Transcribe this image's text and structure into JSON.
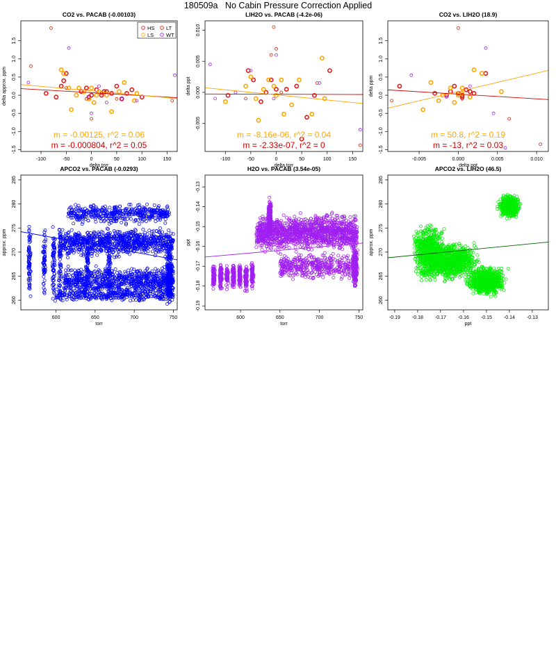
{
  "page_title": "180509a   No Cabin Pressure Correction Applied",
  "colors": {
    "HS": "#e31a1c",
    "LS": "#ffa500",
    "LT": "#cc2200",
    "WT": "#a020f0",
    "blue": "#0000ff",
    "purple": "#a020f0",
    "green": "#00ee00",
    "fit_red": "#d40000",
    "fit_orange": "#ffa500",
    "fit_green": "#006400"
  },
  "chart_data": [
    {
      "type": "scatter",
      "title": "CO2 vs. PACAB (-0.00103)",
      "xlabel": "delta torr",
      "ylabel": "delta approx. ppm",
      "xlim": [
        -140,
        170
      ],
      "ylim": [
        -1.55,
        2.05
      ],
      "xticks": [
        "-100",
        "-50",
        "0",
        "50",
        "100",
        "150"
      ],
      "xtick_values": [
        -100,
        -50,
        0,
        50,
        100,
        150
      ],
      "yticks": [
        "-1.5",
        "-1.0",
        "-0.5",
        "0.0",
        "0.5",
        "1.0",
        "1.5"
      ],
      "ytick_values": [
        -1.5,
        -1.0,
        -0.5,
        0.0,
        0.5,
        1.0,
        1.5
      ],
      "legend": {
        "position": "top-right",
        "entries": [
          "HS",
          "LT",
          "LS",
          "WT"
        ]
      },
      "series": [
        {
          "name": "HS",
          "color_key": "HS",
          "bold": true,
          "x": [
            -90,
            -60,
            -55,
            -50,
            -20,
            -10,
            -5,
            0,
            10,
            20,
            30,
            40,
            50,
            60,
            70,
            80,
            100,
            -70,
            25
          ],
          "y": [
            0.05,
            0.25,
            0.4,
            0.6,
            0.1,
            0.2,
            -0.05,
            0.0,
            0.15,
            0.0,
            0.1,
            0.05,
            0.25,
            -0.1,
            0.05,
            0.15,
            -0.05,
            -0.05,
            0.1
          ]
        },
        {
          "name": "LS",
          "color_key": "LS",
          "bold": true,
          "x": [
            -60,
            -55,
            -45,
            -40,
            -30,
            -15,
            -5,
            0,
            5,
            10,
            15,
            40,
            55,
            65,
            85,
            90,
            -25,
            30
          ],
          "y": [
            0.7,
            0.6,
            0.2,
            -0.4,
            0.0,
            0.1,
            -0.1,
            0.2,
            -0.2,
            0.0,
            0.1,
            -0.45,
            0.1,
            0.35,
            -0.15,
            0.05,
            0.2,
            0.0
          ]
        },
        {
          "name": "LT",
          "color_key": "LT",
          "bold": false,
          "x": [
            -120,
            -80,
            -50,
            -10,
            0,
            20,
            50,
            160
          ],
          "y": [
            0.8,
            1.85,
            0.2,
            -0.1,
            -0.65,
            0.05,
            -0.1,
            -0.15
          ]
        },
        {
          "name": "WT",
          "color_key": "WT",
          "bold": false,
          "x": [
            -125,
            -45,
            -5,
            0,
            15,
            30,
            60,
            90,
            165
          ],
          "y": [
            0.35,
            1.3,
            -0.05,
            -0.5,
            0.25,
            -0.2,
            -0.1,
            -0.15,
            0.55
          ]
        }
      ],
      "fits": [
        {
          "color_key": "fit_red",
          "slope": -0.000804,
          "intercept": 0.07
        },
        {
          "color_key": "fit_orange",
          "slope": -0.00125,
          "intercept": 0.12
        }
      ],
      "annotations": [
        {
          "text": "m = -0.00125, r^2 = 0.06",
          "color_key": "fit_orange"
        },
        {
          "text": "m = -0.000804, r^2 = 0.05",
          "color_key": "fit_red"
        }
      ]
    },
    {
      "type": "scatter",
      "title": "LIH2O vs. PACAB (-4.2e-06)",
      "xlabel": "delta torr",
      "ylabel": "delta ppt",
      "xlim": [
        -140,
        170
      ],
      "ylim": [
        -0.0095,
        0.0115
      ],
      "xticks": [
        "-100",
        "-50",
        "0",
        "50",
        "100",
        "150"
      ],
      "xtick_values": [
        -100,
        -50,
        0,
        50,
        100,
        150
      ],
      "yticks": [
        "-0.005",
        "0.000",
        "0.005",
        "0.010"
      ],
      "ytick_values": [
        -0.005,
        0.0,
        0.005,
        0.01
      ],
      "series": [
        {
          "name": "HS",
          "color_key": "HS",
          "bold": true,
          "x": [
            -95,
            -55,
            -45,
            -20,
            -10,
            0,
            20,
            40,
            60,
            75,
            105,
            -30,
            50
          ],
          "y": [
            -0.0005,
            0.0035,
            0.002,
            0.0,
            0.002,
            0.0005,
            0.0005,
            0.001,
            -0.004,
            -0.0005,
            0.0035,
            -0.0015,
            -0.0075
          ]
        },
        {
          "name": "LS",
          "color_key": "LS",
          "bold": true,
          "x": [
            -100,
            -60,
            -50,
            -40,
            -25,
            -15,
            -5,
            0,
            10,
            15,
            30,
            45,
            70,
            90,
            95,
            -35
          ],
          "y": [
            -0.0015,
            0.001,
            0.0025,
            -0.001,
            0.0005,
            0.002,
            0.001,
            -0.0005,
            0.002,
            -0.0035,
            -0.002,
            0.002,
            -0.0035,
            0.0055,
            -0.001,
            -0.0045
          ]
        },
        {
          "name": "LT",
          "color_key": "LT",
          "bold": false,
          "x": [
            -5,
            0,
            10,
            80,
            165,
            -10,
            -60
          ],
          "y": [
            0.0105,
            0.007,
            0.0,
            0.0015,
            -0.0085,
            0.006,
            -0.001
          ]
        },
        {
          "name": "WT",
          "color_key": "WT",
          "bold": false,
          "x": [
            -130,
            -120,
            -80,
            -50,
            0,
            85,
            165,
            -5
          ],
          "y": [
            0.0045,
            -0.001,
            0.0,
            0.0035,
            0.006,
            0.0015,
            -0.006,
            -0.001
          ]
        }
      ],
      "fits": [
        {
          "color_key": "fit_red",
          "slope": -2.33e-07,
          "intercept": -0.0003
        },
        {
          "color_key": "fit_orange",
          "slope": -8.16e-06,
          "intercept": -0.0004
        }
      ],
      "annotations": [
        {
          "text": "m = -8.16e-06, r^2 = 0.04",
          "color_key": "fit_orange"
        },
        {
          "text": "m = -2.33e-07, r^2 = 0",
          "color_key": "fit_red"
        }
      ]
    },
    {
      "type": "scatter",
      "title": "CO2 vs. LIH2O (18.9)",
      "xlabel": "delta ppt",
      "ylabel": "delta ppm",
      "xlim": [
        -0.009,
        0.0115
      ],
      "ylim": [
        -1.55,
        2.05
      ],
      "xticks": [
        "-0.005",
        "0.000",
        "0.005",
        "0.010"
      ],
      "xtick_values": [
        -0.005,
        0.0,
        0.005,
        0.01
      ],
      "yticks": [
        "-1.5",
        "-1.0",
        "-0.5",
        "0.0",
        "0.5",
        "1.0",
        "1.5"
      ],
      "ytick_values": [
        -1.5,
        -1.0,
        -0.5,
        0.0,
        0.5,
        1.0,
        1.5
      ],
      "series": [
        {
          "name": "HS",
          "color_key": "HS",
          "bold": true,
          "x": [
            -0.0075,
            -0.003,
            -0.001,
            -0.0005,
            0.0,
            0.0005,
            0.001,
            0.002,
            0.0035,
            -0.0015,
            0.0015,
            0.0005
          ],
          "y": [
            0.25,
            0.05,
            0.1,
            0.25,
            0.05,
            0.0,
            0.15,
            0.05,
            0.6,
            0.0,
            0.1,
            -0.05
          ]
        },
        {
          "name": "LS",
          "color_key": "LS",
          "bold": true,
          "x": [
            -0.0045,
            -0.0035,
            -0.0025,
            -0.002,
            -0.001,
            -0.0005,
            0.0,
            0.0005,
            0.0015,
            0.002,
            0.003,
            0.0055,
            0.0005
          ],
          "y": [
            -0.4,
            0.35,
            -0.15,
            0.0,
            0.2,
            -0.2,
            0.0,
            0.2,
            -0.05,
            0.7,
            0.6,
            0.1,
            0.05
          ]
        },
        {
          "name": "LT",
          "color_key": "LT",
          "bold": false,
          "x": [
            0.0,
            0.0005,
            0.0065,
            0.0105,
            -0.0085
          ],
          "y": [
            1.85,
            -0.1,
            -0.65,
            -1.35,
            -0.15
          ]
        },
        {
          "name": "WT",
          "color_key": "WT",
          "bold": false,
          "x": [
            -0.006,
            0.0035,
            0.006,
            0.0045,
            -0.0015,
            0.0015
          ],
          "y": [
            0.55,
            1.3,
            -1.45,
            -0.5,
            -0.05,
            0.25
          ]
        }
      ],
      "fits": [
        {
          "color_key": "fit_red",
          "slope": -13,
          "intercept": 0.03
        },
        {
          "color_key": "fit_orange",
          "slope": 50.8,
          "intercept": 0.1
        }
      ],
      "annotations": [
        {
          "text": "m = 50.8, r^2 = 0.19",
          "color_key": "fit_orange"
        },
        {
          "text": "m = -13, r^2 = 0.03",
          "color_key": "fit_red"
        }
      ]
    },
    {
      "type": "scatter",
      "title": "APCO2 vs. PACAB (-0.0293)",
      "xlabel": "torr",
      "ylabel": "approx. ppm",
      "xlim": [
        555,
        755
      ],
      "ylim": [
        258,
        286
      ],
      "xticks": [
        "600",
        "650",
        "700",
        "750"
      ],
      "xtick_values": [
        600,
        650,
        700,
        750
      ],
      "yticks": [
        "260",
        "265",
        "270",
        "275",
        "280",
        "285"
      ],
      "ytick_values": [
        260,
        265,
        270,
        275,
        280,
        285
      ],
      "series": [
        {
          "color_key": "blue",
          "count": 3000,
          "seed": 11,
          "x_range": [
            562,
            751
          ],
          "y_range": [
            259,
            284
          ]
        }
      ],
      "fits": [
        {
          "color_key": "blue",
          "slope": -0.0293,
          "intercept": 290.5
        }
      ]
    },
    {
      "type": "scatter",
      "title": "H2O vs. PACAB (3.54e-05)",
      "xlabel": "torr",
      "ylabel": "ppt",
      "xlim": [
        555,
        755
      ],
      "ylim": [
        -0.192,
        -0.124
      ],
      "xticks": [
        "600",
        "650",
        "700",
        "750"
      ],
      "xtick_values": [
        600,
        650,
        700,
        750
      ],
      "yticks": [
        "-0.19",
        "-0.18",
        "-0.17",
        "-0.16",
        "-0.15",
        "-0.14",
        "-0.13"
      ],
      "ytick_values": [
        -0.19,
        -0.18,
        -0.17,
        -0.16,
        -0.15,
        -0.14,
        -0.13
      ],
      "series": [
        {
          "color_key": "purple",
          "count": 3000,
          "seed": 23,
          "x_range": [
            562,
            751
          ],
          "y_range": [
            -0.189,
            -0.128
          ]
        }
      ],
      "fits": [
        {
          "color_key": "purple",
          "slope": 3.54e-05,
          "intercept": -0.185
        }
      ]
    },
    {
      "type": "scatter",
      "title": "APCO2 vs. LIH2O (46.5)",
      "xlabel": "ppt",
      "ylabel": "approx. ppm",
      "xlim": [
        -0.193,
        -0.123
      ],
      "ylim": [
        258,
        286
      ],
      "xticks": [
        "-0.19",
        "-0.18",
        "-0.17",
        "-0.16",
        "-0.15",
        "-0.14",
        "-0.13"
      ],
      "xtick_values": [
        -0.19,
        -0.18,
        -0.17,
        -0.16,
        -0.15,
        -0.14,
        -0.13
      ],
      "yticks": [
        "260",
        "265",
        "270",
        "275",
        "280",
        "285"
      ],
      "ytick_values": [
        260,
        265,
        270,
        275,
        280,
        285
      ],
      "series": [
        {
          "color_key": "green",
          "count": 3000,
          "seed": 37,
          "x_range": [
            -0.189,
            -0.128
          ],
          "y_range": [
            259,
            284
          ]
        }
      ],
      "fits": [
        {
          "color_key": "fit_green",
          "slope": 46.5,
          "intercept": 277.8
        }
      ]
    }
  ]
}
